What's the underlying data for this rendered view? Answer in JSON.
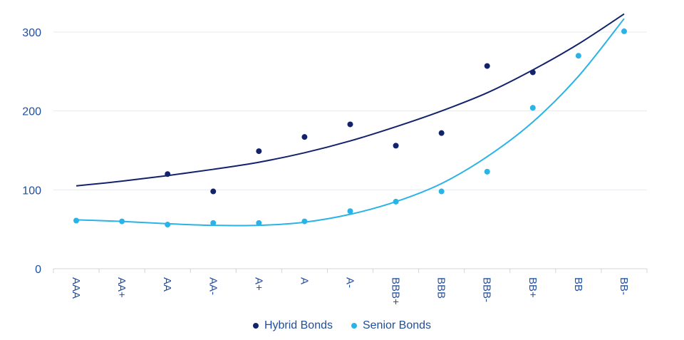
{
  "chart_data": {
    "type": "scatter",
    "categories": [
      "AAA",
      "AA+",
      "AA",
      "AA-",
      "A+",
      "A",
      "A-",
      "BBB+",
      "BBB",
      "BBB-",
      "BB+",
      "BB",
      "BB-"
    ],
    "ylim": [
      0,
      300
    ],
    "yticks": [
      0,
      100,
      200,
      300
    ],
    "grid": true,
    "legend_position": "bottom",
    "series": [
      {
        "name": "Hybrid Bonds",
        "color": "#12236b",
        "values": [
          null,
          null,
          120,
          98,
          149,
          167,
          183,
          156,
          172,
          257,
          249,
          null,
          null
        ],
        "trend": [
          105,
          111,
          118,
          126,
          135,
          147,
          162,
          180,
          200,
          223,
          252,
          285,
          323
        ]
      },
      {
        "name": "Senior Bonds",
        "color": "#2ab3e6",
        "values": [
          61,
          60,
          56,
          58,
          58,
          60,
          73,
          85,
          98,
          123,
          204,
          270,
          301
        ],
        "trend": [
          62,
          60,
          57,
          55,
          55,
          59,
          69,
          85,
          108,
          142,
          186,
          244,
          317
        ]
      }
    ]
  }
}
